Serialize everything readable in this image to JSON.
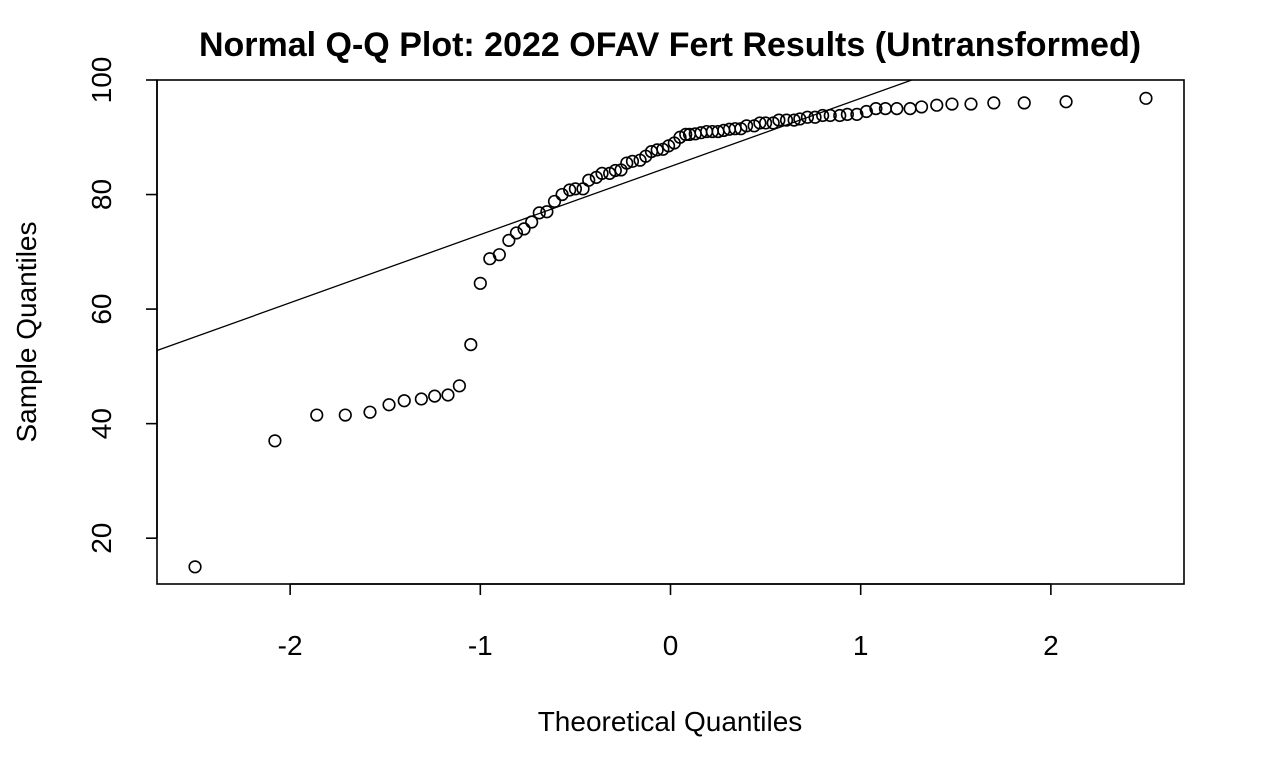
{
  "chart_data": {
    "type": "scatter",
    "title": "Normal Q-Q Plot: 2022 OFAV Fert Results (Untransformed)",
    "xlabel": "Theoretical Quantiles",
    "ylabel": "Sample Quantiles",
    "xlim": [
      -2.7,
      2.7
    ],
    "ylim": [
      12,
      100
    ],
    "xticks": [
      -2,
      -1,
      0,
      1,
      2
    ],
    "xtick_labels": [
      "-2",
      "-1",
      "0",
      "1",
      "2"
    ],
    "yticks": [
      20,
      40,
      60,
      80,
      100
    ],
    "ytick_labels": [
      "20",
      "40",
      "60",
      "80",
      "100"
    ],
    "grid": false,
    "legend": "none",
    "reference_line": {
      "intercept": 84.9,
      "slope": 11.9
    },
    "series": [
      {
        "x": [
          -2.5,
          -2.08,
          -1.86,
          -1.71,
          -1.58,
          -1.48,
          -1.4,
          -1.31,
          -1.24,
          -1.17,
          -1.11,
          -1.05,
          -1.0,
          -0.95,
          -0.9,
          -0.85,
          -0.81,
          -0.77,
          -0.73,
          -0.69,
          -0.65,
          -0.61,
          -0.57,
          -0.53,
          -0.5,
          -0.46,
          -0.43,
          -0.39,
          -0.36,
          -0.32,
          -0.29,
          -0.26,
          -0.23,
          -0.2,
          -0.16,
          -0.13,
          -0.1,
          -0.07,
          -0.04,
          -0.01,
          0.02,
          0.05,
          0.08,
          0.1,
          0.13,
          0.16,
          0.19,
          0.22,
          0.25,
          0.28,
          0.31,
          0.34,
          0.37,
          0.4,
          0.44,
          0.47,
          0.5,
          0.54,
          0.57,
          0.61,
          0.65,
          0.68,
          0.72,
          0.76,
          0.8,
          0.84,
          0.89,
          0.93,
          0.98,
          1.03,
          1.08,
          1.13,
          1.19,
          1.26,
          1.32,
          1.4,
          1.48,
          1.58,
          1.7,
          1.86,
          2.08,
          2.5
        ],
        "y": [
          15.0,
          37.0,
          41.5,
          41.5,
          42.0,
          43.3,
          44.0,
          44.3,
          44.8,
          45.0,
          46.6,
          53.8,
          64.5,
          68.8,
          69.5,
          72.0,
          73.3,
          74.0,
          75.2,
          76.8,
          77.0,
          78.8,
          80.0,
          80.8,
          81.0,
          81.0,
          82.5,
          83.0,
          83.7,
          83.7,
          84.2,
          84.3,
          85.5,
          85.8,
          86.0,
          86.7,
          87.5,
          87.8,
          87.9,
          88.5,
          89.0,
          90.0,
          90.5,
          90.5,
          90.6,
          90.8,
          91.0,
          91.0,
          91.0,
          91.2,
          91.4,
          91.5,
          91.5,
          92.0,
          92.0,
          92.5,
          92.5,
          92.5,
          93.0,
          93.0,
          93.0,
          93.2,
          93.5,
          93.5,
          93.8,
          93.8,
          93.8,
          94.0,
          94.0,
          94.5,
          95.0,
          95.0,
          95.0,
          95.0,
          95.3,
          95.6,
          95.8,
          95.8,
          96.0,
          96.0,
          96.2,
          96.8
        ]
      }
    ]
  }
}
